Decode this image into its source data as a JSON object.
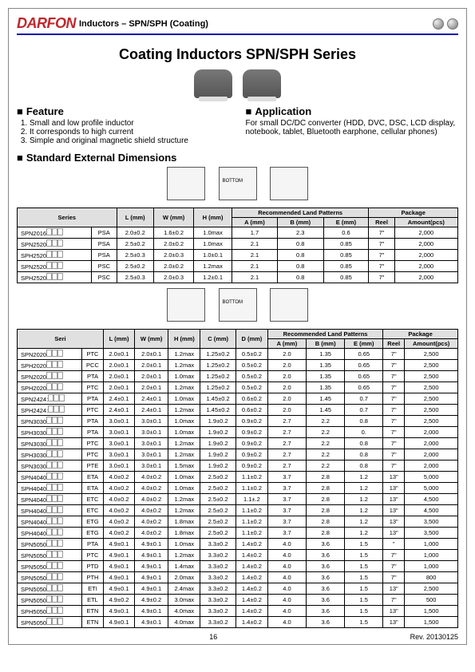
{
  "header": {
    "brand": "DARFON",
    "title": "Inductors – SPN/SPH (Coating)"
  },
  "main_title": "Coating Inductors SPN/SPH Series",
  "feature": {
    "heading": "Feature",
    "items": [
      "Small and low profile inductor",
      "It corresponds to high current",
      "Simple and original magnetic shield structure"
    ]
  },
  "application": {
    "heading": "Application",
    "text": "For small DC/DC converter (HDD, DVC, DSC, LCD display, notebook, tablet, Bluetooth earphone, cellular phones)"
  },
  "std_dims": "Standard External Dimensions",
  "table1": {
    "head": {
      "series": "Series",
      "L": "L (mm)",
      "W": "W (mm)",
      "H": "H (mm)",
      "rlp": "Recommended Land Patterns",
      "A": "A (mm)",
      "B": "B (mm)",
      "E": "E (mm)",
      "pkg": "Package",
      "reel": "Reel",
      "amt": "Amount(pcs)"
    },
    "rows": [
      {
        "pn": "SPN2016",
        "suf": "PSA",
        "L": "2.0±0.2",
        "W": "1.6±0.2",
        "H": "1.0max",
        "A": "1.7",
        "B": "2.3",
        "E": "0.6",
        "reel": "7\"",
        "amt": "2,000"
      },
      {
        "pn": "SPN2520",
        "suf": "PSA",
        "L": "2.5±0.2",
        "W": "2.0±0.2",
        "H": "1.0max",
        "A": "2.1",
        "B": "0.8",
        "E": "0.85",
        "reel": "7\"",
        "amt": "2,000"
      },
      {
        "pn": "SPH2520",
        "suf": "PSA",
        "L": "2.5±0.3",
        "W": "2.0±0.3",
        "H": "1.0±0.1",
        "A": "2.1",
        "B": "0.8",
        "E": "0.85",
        "reel": "7\"",
        "amt": "2,000"
      },
      {
        "pn": "SPN2520",
        "suf": "PSC",
        "L": "2.5±0.2",
        "W": "2.0±0.2",
        "H": "1.2max",
        "A": "2.1",
        "B": "0.8",
        "E": "0.85",
        "reel": "7\"",
        "amt": "2,000"
      },
      {
        "pn": "SPH2520",
        "suf": "PSC",
        "L": "2.5±0.3",
        "W": "2.0±0.3",
        "H": "1.2±0.1",
        "A": "2.1",
        "B": "0.8",
        "E": "0.85",
        "reel": "7\"",
        "amt": "2,000"
      }
    ]
  },
  "table2": {
    "head": {
      "series": "Seri",
      "L": "L (mm)",
      "W": "W (mm)",
      "H": "H (mm)",
      "C": "C (mm)",
      "D": "D (mm)",
      "rlp": "Recommended Land Patterns",
      "A": "A (mm)",
      "B": "B (mm)",
      "E": "E (mm)",
      "pkg": "Package",
      "reel": "Reel",
      "amt": "Amount(pcs)"
    },
    "rows": [
      {
        "pn": "SPN2020",
        "suf": "PTC",
        "L": "2.0±0.1",
        "W": "2.0±0.1",
        "H": "1.2max",
        "C": "1.25±0.2",
        "D": "0.5±0.2",
        "A": "2.0",
        "B": "1.35",
        "E": "0.65",
        "reel": "7\"",
        "amt": "2,500"
      },
      {
        "pn": "SPH2020",
        "suf": "PCC",
        "L": "2.0±0.1",
        "W": "2.0±0.1",
        "H": "1.2max",
        "C": "1.25±0.2",
        "D": "0.5±0.2",
        "A": "2.0",
        "B": "1.35",
        "E": "0.65",
        "reel": "7\"",
        "amt": "2,500"
      },
      {
        "pn": "SPN2020",
        "suf": "PTA",
        "L": "2.0±0.1",
        "W": "2.0±0.1",
        "H": "1.0max",
        "C": "1.25±0.2",
        "D": "0.5±0.2",
        "A": "2.0",
        "B": "1.35",
        "E": "0.65",
        "reel": "7\"",
        "amt": "2,500"
      },
      {
        "pn": "SPH2020",
        "suf": "PTC",
        "L": "2.0±0.1",
        "W": "2.0±0.1",
        "H": "1.2max",
        "C": "1.25±0.2",
        "D": "0.5±0.2",
        "A": "2.0",
        "B": "1.35",
        "E": "0.65",
        "reel": "7\"",
        "amt": "2,500"
      },
      {
        "pn": "SPN2424:",
        "suf": "PTA",
        "L": "2.4±0.1",
        "W": "2.4±0.1",
        "H": "1.0max",
        "C": "1.45±0.2",
        "D": "0.6±0.2",
        "A": "2.0",
        "B": "1.45",
        "E": "0.7",
        "reel": "7\"",
        "amt": "2,500"
      },
      {
        "pn": "SPH2424:",
        "suf": "PTC",
        "L": "2.4±0.1",
        "W": "2.4±0.1",
        "H": "1.2max",
        "C": "1.45±0.2",
        "D": "0.6±0.2",
        "A": "2.0",
        "B": "1.45",
        "E": "0.7",
        "reel": "7\"",
        "amt": "2,500"
      },
      {
        "pn": "SPN3030",
        "suf": "PTA",
        "L": "3.0±0.1",
        "W": "3.0±0.1",
        "H": "1.0max",
        "C": "1.9±0.2",
        "D": "0.9±0.2",
        "A": "2.7",
        "B": "2.2",
        "E": "0.8",
        "reel": "7\"",
        "amt": "2,500"
      },
      {
        "pn": "SPH3030",
        "suf": "PTA",
        "L": "3.0±0.1",
        "W": "3.0±0.1",
        "H": "1.0max",
        "C": "1.9±0.2",
        "D": "0.9±0.2",
        "A": "2.7",
        "B": "2.2",
        "E": "0.",
        "reel": "7\"",
        "amt": "2,000"
      },
      {
        "pn": "SPN3030",
        "suf": "PTC",
        "L": "3.0±0.1",
        "W": "3.0±0.1",
        "H": "1.2max",
        "C": "1.9±0.2",
        "D": "0.9±0.2",
        "A": "2.7",
        "B": "2.2",
        "E": "0.8",
        "reel": "7\"",
        "amt": "2,000"
      },
      {
        "pn": "SPH3030",
        "suf": "PTC",
        "L": "3.0±0.1",
        "W": "3.0±0.1",
        "H": "1.2max",
        "C": "1.9±0.2",
        "D": "0.9±0.2",
        "A": "2.7",
        "B": "2.2",
        "E": "0.8",
        "reel": "7\"",
        "amt": "2,000"
      },
      {
        "pn": "SPN3030",
        "suf": "PTE",
        "L": "3.0±0.1",
        "W": "3.0±0.1",
        "H": "1.5max",
        "C": "1.9±0.2",
        "D": "0.9±0.2",
        "A": "2.7",
        "B": "2.2",
        "E": "0.8",
        "reel": "7\"",
        "amt": "2,000"
      },
      {
        "pn": "SPN4040",
        "suf": "ETA",
        "L": "4.0±0.2",
        "W": "4.0±0.2",
        "H": "1.0max",
        "C": "2.5±0.2",
        "D": "1.1±0.2",
        "A": "3.7",
        "B": "2.8",
        "E": "1.2",
        "reel": "13\"",
        "amt": "5,000"
      },
      {
        "pn": "SPH4040",
        "suf": "ETA",
        "L": "4.0±0.2",
        "W": "4.0±0.2",
        "H": "1.0max",
        "C": "2.5±0.2",
        "D": "1.1±0.2",
        "A": "3.7",
        "B": "2.8",
        "E": "1.2",
        "reel": "13\"",
        "amt": "5,000"
      },
      {
        "pn": "SPN4040",
        "suf": "ETC",
        "L": "4.0±0.2",
        "W": "4.0±0.2",
        "H": "1.2max",
        "C": "2.5±0.2",
        "D": "1.1±.2",
        "A": "3.7",
        "B": "2.8",
        "E": "1.2",
        "reel": "13\"",
        "amt": "4,500"
      },
      {
        "pn": "SPH4040",
        "suf": "ETC",
        "L": "4.0±0.2",
        "W": "4.0±0.2",
        "H": "1.2max",
        "C": "2.5±0.2",
        "D": "1.1±0.2",
        "A": "3.7",
        "B": "2.8",
        "E": "1.2",
        "reel": "13\"",
        "amt": "4,500"
      },
      {
        "pn": "SPN4040",
        "suf": "ETG",
        "L": "4.0±0.2",
        "W": "4.0±0.2",
        "H": "1.8max",
        "C": "2.5±0.2",
        "D": "1.1±0.2",
        "A": "3.7",
        "B": "2.8",
        "E": "1.2",
        "reel": "13\"",
        "amt": "3,500"
      },
      {
        "pn": "SPH4040",
        "suf": "ETG",
        "L": "4.0±0.2",
        "W": "4.0±0.2",
        "H": "1.8max",
        "C": "2.5±0.2",
        "D": "1.1±0.2",
        "A": "3.7",
        "B": "2.8",
        "E": "1.2",
        "reel": "13\"",
        "amt": "3,500"
      },
      {
        "pn": "SPN5050",
        "suf": "PTA",
        "L": "4.9±0.1",
        "W": "4.9±0.1",
        "H": "1.0max",
        "C": "3.3±0.2",
        "D": "1.4±0.2",
        "A": "4.0",
        "B": "3.6",
        "E": "1.5",
        "reel": "\"",
        "amt": "1,000"
      },
      {
        "pn": "SPN5050",
        "suf": "PTC",
        "L": "4.9±0.1",
        "W": "4.9±0.1",
        "H": "1.2max",
        "C": "3.3±0.2",
        "D": "1.4±0.2",
        "A": "4.0",
        "B": "3.6",
        "E": "1.5",
        "reel": "7\"",
        "amt": "1,000"
      },
      {
        "pn": "SPN5050",
        "suf": "PTD",
        "L": "4.9±0.1",
        "W": "4.9±0.1",
        "H": "1.4max",
        "C": "3.3±0.2",
        "D": "1.4±0.2",
        "A": "4.0",
        "B": "3.6",
        "E": "1.5",
        "reel": "7\"",
        "amt": "1,000"
      },
      {
        "pn": "SPN5050",
        "suf": "PTH",
        "L": "4.9±0.1",
        "W": "4.9±0.1",
        "H": "2.0max",
        "C": "3.3±0.2",
        "D": "1.4±0.2",
        "A": "4.0",
        "B": "3.6",
        "E": "1.5",
        "reel": "7\"",
        "amt": "800"
      },
      {
        "pn": "SPN5050",
        "suf": "ETI",
        "L": "4.9±0.1",
        "W": "4.9±0.1",
        "H": "2.4max",
        "C": "3.3±0.2",
        "D": "1.4±0.2",
        "A": "4.0",
        "B": "3.6",
        "E": "1.5",
        "reel": "13\"",
        "amt": "2,500"
      },
      {
        "pn": "SPN5050",
        "suf": "ETL",
        "L": "4.9±0.2",
        "W": "4.9±0.2",
        "H": "3.0max",
        "C": "3.3±0.2",
        "D": "1.4±0.2",
        "A": "4.0",
        "B": "3.6",
        "E": "1.5",
        "reel": "7\"",
        "amt": "500"
      },
      {
        "pn": "SPH5050",
        "suf": "ETN",
        "L": "4.9±0.1",
        "W": "4.9±0.1",
        "H": "4.0max",
        "C": "3.3±0.2",
        "D": "1.4±0.2",
        "A": "4.0",
        "B": "3.6",
        "E": "1.5",
        "reel": "13\"",
        "amt": "1,500"
      },
      {
        "pn": "SPN5050",
        "suf": "ETN",
        "L": "4.9±0.1",
        "W": "4.9±0.1",
        "H": "4.0max",
        "C": "3.3±0.2",
        "D": "1.4±0.2",
        "A": "4.0",
        "B": "3.6",
        "E": "1.5",
        "reel": "13\"",
        "amt": "1,500"
      }
    ]
  },
  "footer": {
    "page": "16",
    "rev": "Rev. 20130125"
  }
}
